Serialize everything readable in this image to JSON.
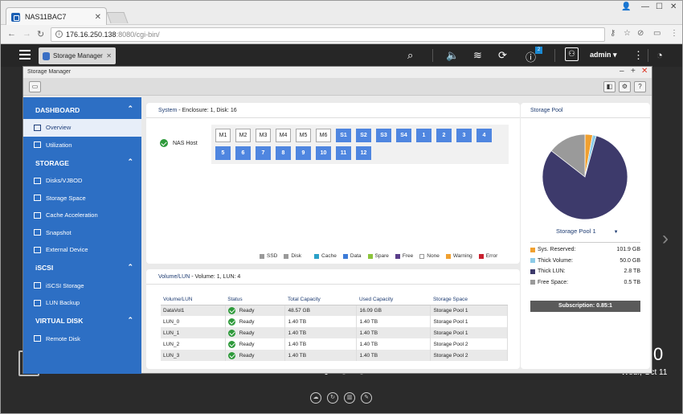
{
  "browser": {
    "tab_title": "NAS11BAC7",
    "url_host": "176.16.250.138",
    "url_rest": ":8080/cgi-bin/"
  },
  "qts": {
    "app_tab": "Storage Manager",
    "user": "admin"
  },
  "desktop": {
    "clock": "0",
    "date": "Wed., Oct 11"
  },
  "window": {
    "title": "Storage Manager"
  },
  "sidebar": {
    "dashboard": "DASHBOARD",
    "overview": "Overview",
    "utilization": "Utilization",
    "storage": "STORAGE",
    "disks": "Disks/VJBOD",
    "space": "Storage Space",
    "cache": "Cache Acceleration",
    "snapshot": "Snapshot",
    "external": "External Device",
    "iscsi": "iSCSI",
    "iscsi_storage": "iSCSI Storage",
    "lun_backup": "LUN Backup",
    "virtual": "VIRTUAL DISK",
    "remote": "Remote Disk"
  },
  "system": {
    "header": "System",
    "header_detail": " - Enclosure: 1, Disk: 16",
    "host": "NAS Host",
    "slots": [
      "M1",
      "M2",
      "M3",
      "M4",
      "M5",
      "M6",
      "S1",
      "S2",
      "S3",
      "S4",
      "1",
      "2",
      "3",
      "4",
      "5",
      "6",
      "7",
      "8",
      "9",
      "10",
      "11",
      "12"
    ],
    "legend": [
      "SSD",
      "Disk",
      "Cache",
      "Data",
      "Spare",
      "Free",
      "None",
      "Warning",
      "Error"
    ]
  },
  "volume": {
    "header": "Volume/LUN",
    "header_detail": " - Volume: 1, LUN: 4",
    "columns": [
      "Volume/LUN",
      "Status",
      "Total Capacity",
      "Used Capacity",
      "Storage Space"
    ],
    "rows": [
      {
        "name": "DataVol1",
        "status": "Ready",
        "total": "48.57 GB",
        "used": "16.09 GB",
        "space": "Storage Pool 1"
      },
      {
        "name": "LUN_0",
        "status": "Ready",
        "total": "1.40 TB",
        "used": "1.40 TB",
        "space": "Storage Pool 1"
      },
      {
        "name": "LUN_1",
        "status": "Ready",
        "total": "1.40 TB",
        "used": "1.40 TB",
        "space": "Storage Pool 1"
      },
      {
        "name": "LUN_2",
        "status": "Ready",
        "total": "1.40 TB",
        "used": "1.40 TB",
        "space": "Storage Pool 2"
      },
      {
        "name": "LUN_3",
        "status": "Ready",
        "total": "1.40 TB",
        "used": "1.40 TB",
        "space": "Storage Pool 2"
      }
    ]
  },
  "pool": {
    "header": "Storage Pool",
    "selected": "Storage Pool 1",
    "stats": [
      {
        "label": "Sys. Reserved:",
        "value": "101.9 GB",
        "amount": 101.9,
        "color": "#f0a030"
      },
      {
        "label": "Thick Volume:",
        "value": "50.0 GB",
        "amount": 50.0,
        "color": "#8ccbe8"
      },
      {
        "label": "Thick LUN:",
        "value": "2.8 TB",
        "amount": 2867,
        "color": "#3d3a6b"
      },
      {
        "label": "Free Space:",
        "value": "0.5 TB",
        "amount": 512,
        "color": "#9a9a9a"
      }
    ],
    "subscription": "Subscription: 0.85:1"
  },
  "colors": {
    "sidebar": "#2d6fc4",
    "slot": "#4f86e0"
  }
}
